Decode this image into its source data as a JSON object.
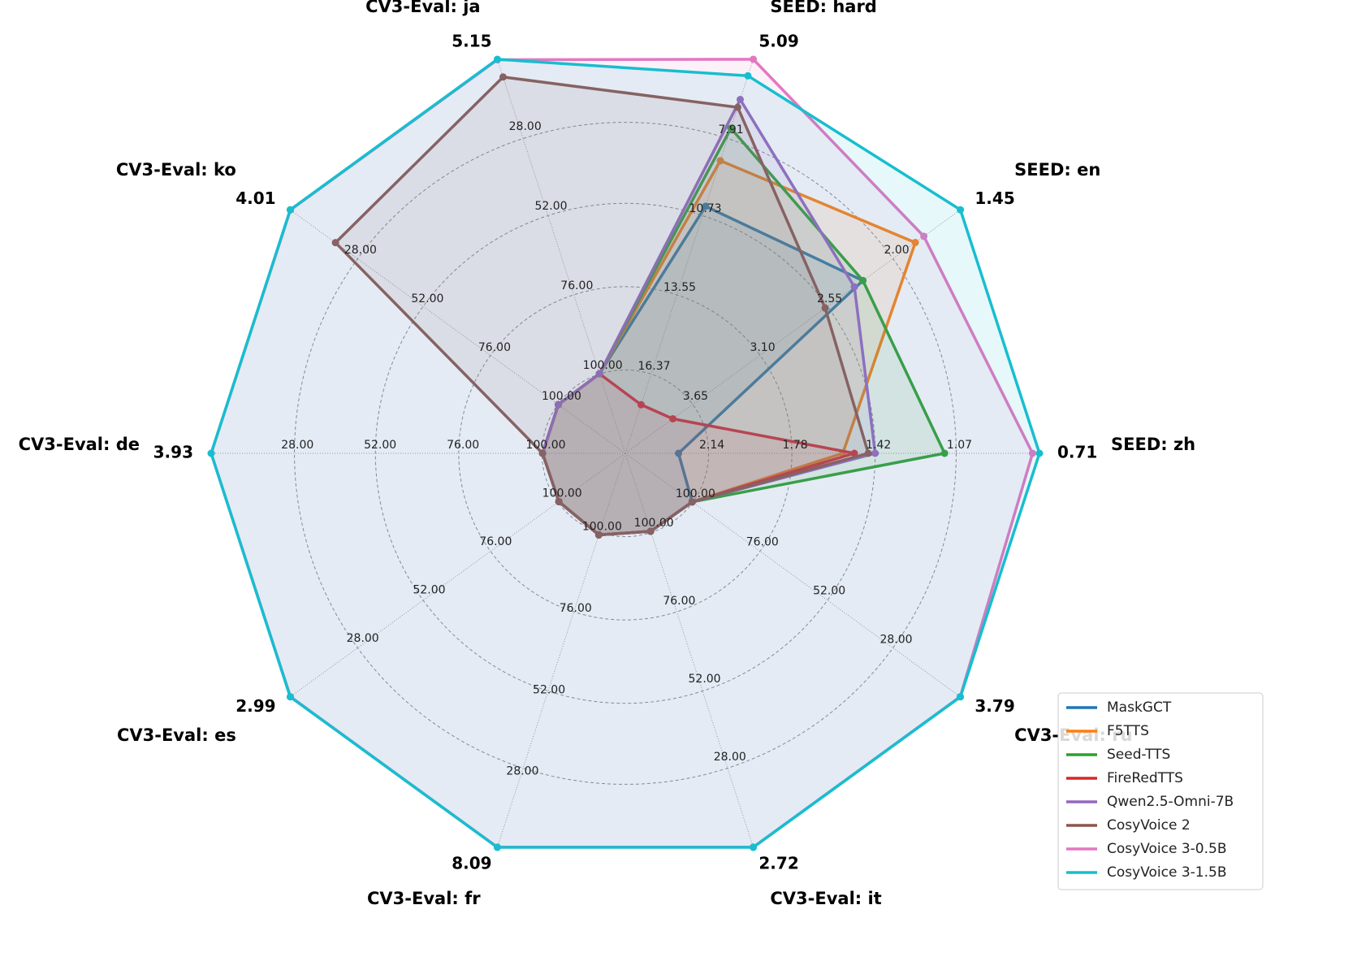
{
  "chart_data": {
    "type": "radar",
    "axes": [
      {
        "name": "SEED: zh",
        "rlim": [
          2.5,
          0.71
        ],
        "rticks": [
          2.14,
          1.78,
          1.42,
          1.07
        ]
      },
      {
        "name": "SEED: en",
        "rlim": [
          4.2,
          1.45
        ],
        "rticks": [
          3.65,
          {
            "value": 3.1,
            "label": "3.10"
          },
          2.55,
          {
            "value": 2,
            "label": "2.00"
          }
        ]
      },
      {
        "name": "SEED: hard",
        "rlim": [
          19.19,
          5.09
        ],
        "rticks": [
          16.37,
          13.55,
          10.73,
          7.91
        ]
      },
      {
        "name": "CV3-Eval: ja",
        "rlim": [
          124,
          5.15
        ],
        "rticks": [
          {
            "value": 100,
            "label": "100.00"
          },
          {
            "value": 76,
            "label": "76.00"
          },
          {
            "value": 52,
            "label": "52.00"
          },
          {
            "value": 28,
            "label": "28.00"
          }
        ]
      },
      {
        "name": "CV3-Eval: ko",
        "rlim": [
          124,
          4.01
        ],
        "rticks": [
          {
            "value": 100,
            "label": "100.00"
          },
          {
            "value": 76,
            "label": "76.00"
          },
          {
            "value": 52,
            "label": "52.00"
          },
          {
            "value": 28,
            "label": "28.00"
          }
        ]
      },
      {
        "name": "CV3-Eval: de",
        "rlim": [
          124,
          3.93
        ],
        "rticks": [
          {
            "value": 100,
            "label": "100.00"
          },
          {
            "value": 76,
            "label": "76.00"
          },
          {
            "value": 52,
            "label": "52.00"
          },
          {
            "value": 28,
            "label": "28.00"
          }
        ]
      },
      {
        "name": "CV3-Eval: es",
        "rlim": [
          124,
          2.99
        ],
        "rticks": [
          {
            "value": 100,
            "label": "100.00"
          },
          {
            "value": 76,
            "label": "76.00"
          },
          {
            "value": 52,
            "label": "52.00"
          },
          {
            "value": 28,
            "label": "28.00"
          }
        ]
      },
      {
        "name": "CV3-Eval: fr",
        "rlim": [
          124,
          8.09
        ],
        "rticks": [
          {
            "value": 100,
            "label": "100.00"
          },
          {
            "value": 76,
            "label": "76.00"
          },
          {
            "value": 52,
            "label": "52.00"
          },
          {
            "value": 28,
            "label": "28.00"
          }
        ]
      },
      {
        "name": "CV3-Eval: it",
        "rlim": [
          124,
          2.72
        ],
        "rticks": [
          {
            "value": 100,
            "label": "100.00"
          },
          {
            "value": 76,
            "label": "76.00"
          },
          {
            "value": 52,
            "label": "52.00"
          },
          {
            "value": 28,
            "label": "28.00"
          }
        ]
      },
      {
        "name": "CV3-Eval: ru",
        "rlim": [
          124,
          3.79
        ],
        "rticks": [
          {
            "value": 100,
            "label": "100.00"
          },
          {
            "value": 76,
            "label": "76.00"
          },
          {
            "value": 52,
            "label": "52.00"
          },
          {
            "value": 28,
            "label": "28.00"
          }
        ]
      }
    ],
    "series": [
      {
        "name": "MaskGCT",
        "color": "#1f77b4",
        "values": [
          2.27,
          2.25,
          10.35,
          100,
          100,
          100,
          100,
          100,
          100,
          100
        ]
      },
      {
        "name": "F5TTS",
        "color": "#ff7f0e",
        "values": [
          1.56,
          1.82,
          8.72,
          100,
          100,
          100,
          100,
          100,
          100,
          100
        ]
      },
      {
        "name": "Seed-TTS",
        "color": "#2ca02c",
        "values": [
          1.12,
          2.25,
          7.56,
          100,
          100,
          100,
          100,
          100,
          100,
          100
        ]
      },
      {
        "name": "FireRedTTS",
        "color": "#d62728",
        "values": [
          1.51,
          3.81,
          17.45,
          100,
          100,
          100,
          100,
          100,
          100,
          100
        ]
      },
      {
        "name": "Qwen2.5-Omni-7B",
        "color": "#9467bd",
        "values": [
          1.42,
          2.32,
          6.53,
          100,
          100,
          100,
          100,
          100,
          100,
          100
        ]
      },
      {
        "name": "CosyVoice 2",
        "color": "#8c564b",
        "values": [
          1.45,
          2.56,
          6.81,
          10.5,
          20.2,
          100,
          100,
          100,
          100,
          100
        ]
      },
      {
        "name": "CosyVoice 3-0.5B",
        "color": "#e377c2",
        "values": [
          0.74,
          1.75,
          5.09,
          5.27,
          4.08,
          3.96,
          3.04,
          8.15,
          2.78,
          3.84
        ]
      },
      {
        "name": "CosyVoice 3-1.5B",
        "color": "#17becf",
        "values": [
          0.71,
          1.45,
          5.68,
          5.15,
          4.01,
          3.93,
          2.99,
          8.09,
          2.72,
          3.79
        ]
      }
    ],
    "legend": "lower right"
  }
}
